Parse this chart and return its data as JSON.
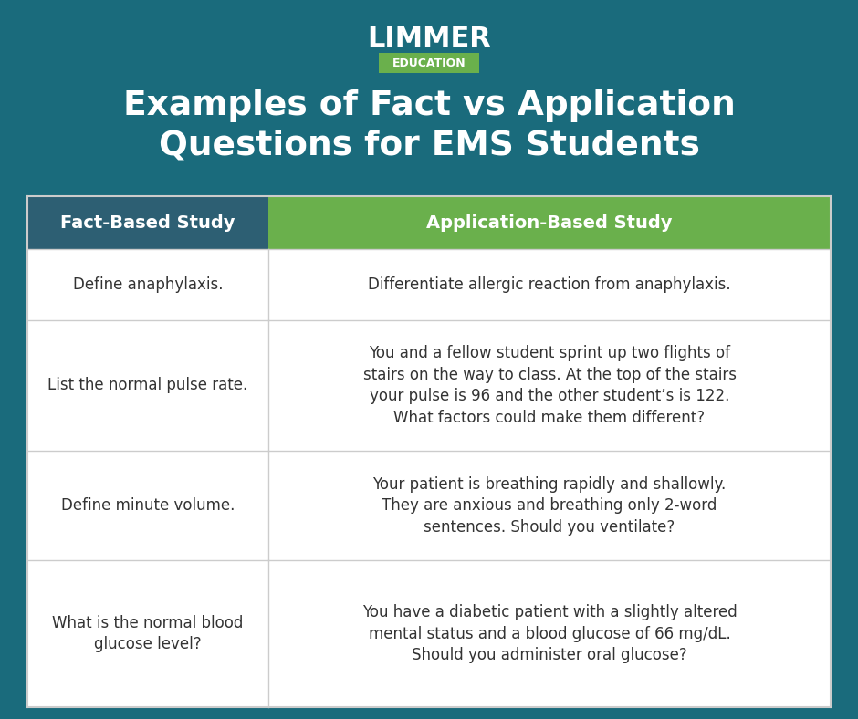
{
  "bg_color": "#1a6b7c",
  "header_left_color": "#2d5f73",
  "header_right_color": "#6ab04c",
  "cell_border_color": "#cccccc",
  "cell_text_color": "#333333",
  "title_text": "Examples of Fact vs Application\nQuestions for EMS Students",
  "title_color": "#ffffff",
  "logo_text": "LIMMER",
  "logo_sub": "EDUCATION",
  "logo_sub_bg": "#6ab04c",
  "col1_header": "Fact-Based Study",
  "col2_header": "Application-Based Study",
  "rows": [
    {
      "left": "Define anaphylaxis.",
      "right": "Differentiate allergic reaction from anaphylaxis."
    },
    {
      "left": "List the normal pulse rate.",
      "right": "You and a fellow student sprint up two flights of\nstairs on the way to class. At the top of the stairs\nyour pulse is 96 and the other student’s is 122.\nWhat factors could make them different?"
    },
    {
      "left": "Define minute volume.",
      "right": "Your patient is breathing rapidly and shallowly.\nThey are anxious and breathing only 2-word\nsentences. Should you ventilate?"
    },
    {
      "left": "What is the normal blood\nglucose level?",
      "right": "You have a diabetic patient with a slightly altered\nmental status and a blood glucose of 66 mg/dL.\nShould you administer oral glucose?"
    }
  ]
}
